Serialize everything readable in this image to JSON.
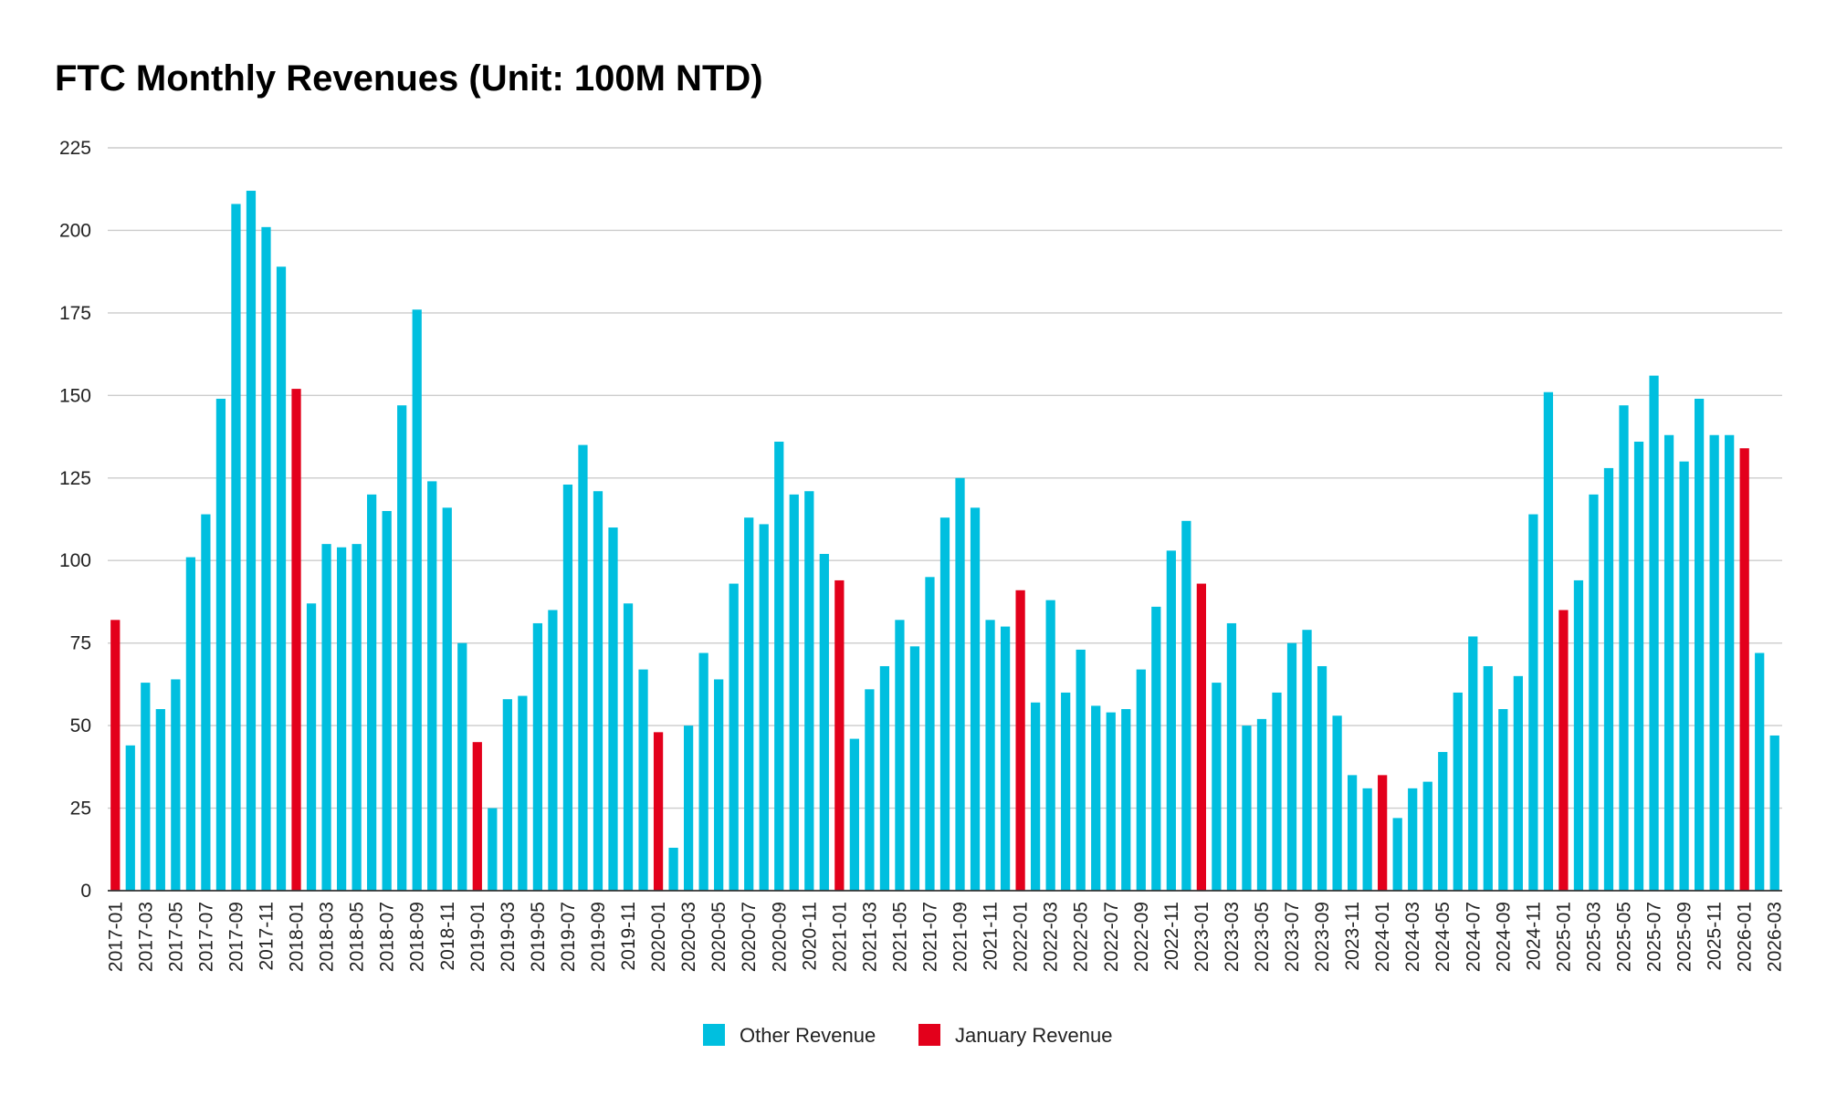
{
  "chart_data": {
    "type": "bar",
    "title": "FTC Monthly Revenues (Unit: 100M NTD)",
    "xlabel": "",
    "ylabel": "",
    "ylim": [
      0,
      225
    ],
    "yticks": [
      "0",
      "25",
      "50",
      "75",
      "100",
      "125",
      "150",
      "175",
      "200",
      "225"
    ],
    "grid": true,
    "legend_position": "bottom-center",
    "legend": [
      {
        "name": "Other Revenue",
        "color": "#00BFDF"
      },
      {
        "name": "January Revenue",
        "color": "#E3001B"
      }
    ],
    "categories": [
      "2017-01",
      "2017-02",
      "2017-03",
      "2017-04",
      "2017-05",
      "2017-06",
      "2017-07",
      "2017-08",
      "2017-09",
      "2017-10",
      "2017-11",
      "2017-12",
      "2018-01",
      "2018-02",
      "2018-03",
      "2018-04",
      "2018-05",
      "2018-06",
      "2018-07",
      "2018-08",
      "2018-09",
      "2018-10",
      "2018-11",
      "2018-12",
      "2019-01",
      "2019-02",
      "2019-03",
      "2019-04",
      "2019-05",
      "2019-06",
      "2019-07",
      "2019-08",
      "2019-09",
      "2019-10",
      "2019-11",
      "2019-12",
      "2020-01",
      "2020-02",
      "2020-03",
      "2020-04",
      "2020-05",
      "2020-06",
      "2020-07",
      "2020-08",
      "2020-09",
      "2020-10",
      "2020-11",
      "2020-12",
      "2021-01",
      "2021-02",
      "2021-03",
      "2021-04",
      "2021-05",
      "2021-06",
      "2021-07",
      "2021-08",
      "2021-09",
      "2021-10",
      "2021-11",
      "2021-12",
      "2022-01",
      "2022-02",
      "2022-03",
      "2022-04",
      "2022-05",
      "2022-06",
      "2022-07",
      "2022-08",
      "2022-09",
      "2022-10",
      "2022-11",
      "2022-12",
      "2023-01",
      "2023-02",
      "2023-03",
      "2023-04",
      "2023-05",
      "2023-06",
      "2023-07",
      "2023-08",
      "2023-09",
      "2023-10",
      "2023-11",
      "2023-12",
      "2024-01",
      "2024-02",
      "2024-03",
      "2024-04",
      "2024-05",
      "2024-06",
      "2024-07",
      "2024-08",
      "2024-09",
      "2024-10",
      "2024-11",
      "2024-12",
      "2025-01",
      "2025-02",
      "2025-03",
      "2025-04",
      "2025-05",
      "2025-06",
      "2025-07",
      "2025-08",
      "2025-09",
      "2025-10",
      "2025-11",
      "2025-12",
      "2026-01",
      "2026-02",
      "2026-03"
    ],
    "values": [
      82,
      44,
      63,
      55,
      64,
      101,
      114,
      149,
      208,
      212,
      201,
      189,
      152,
      87,
      105,
      104,
      105,
      120,
      115,
      147,
      176,
      124,
      116,
      75,
      45,
      25,
      58,
      59,
      81,
      85,
      123,
      135,
      121,
      110,
      87,
      67,
      48,
      13,
      50,
      72,
      64,
      93,
      113,
      111,
      136,
      120,
      121,
      102,
      94,
      46,
      61,
      68,
      82,
      74,
      95,
      113,
      125,
      116,
      82,
      80,
      91,
      57,
      88,
      60,
      73,
      56,
      54,
      55,
      67,
      86,
      103,
      112,
      93,
      63,
      81,
      50,
      52,
      60,
      75,
      79,
      68,
      53,
      35,
      31,
      35,
      22,
      31,
      33,
      42,
      60,
      77,
      68,
      55,
      65,
      114,
      151,
      85,
      94,
      120,
      128,
      147,
      136,
      156,
      138,
      130,
      149,
      138,
      138,
      134,
      72,
      47
    ],
    "highlight_rule": "January months use January Revenue color"
  }
}
